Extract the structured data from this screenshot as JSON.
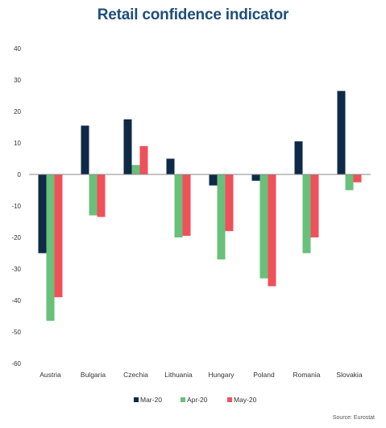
{
  "chart_data": {
    "type": "bar",
    "title": "Retail confidence indicator",
    "categories": [
      "Austria",
      "Bulgaria",
      "Czechia",
      "Lithuania",
      "Hungary",
      "Poland",
      "Romania",
      "Slovakia"
    ],
    "series": [
      {
        "name": "Mar-20",
        "color": "#0e2a47",
        "values": [
          -25,
          15.5,
          17.5,
          5,
          -3.5,
          -2,
          10.5,
          26.5
        ]
      },
      {
        "name": "Apr-20",
        "color": "#6abf7b",
        "values": [
          -46.5,
          -13,
          3,
          -20,
          -27,
          -33,
          -25,
          -5
        ]
      },
      {
        "name": "May-20",
        "color": "#f0505a",
        "values": [
          -39,
          -13.5,
          9,
          -19.5,
          -18,
          -35.5,
          -20,
          -2.5
        ]
      }
    ],
    "ylim": [
      -60,
      40
    ],
    "yticks": [
      -60,
      -50,
      -40,
      -30,
      -20,
      -10,
      0,
      10,
      20,
      30,
      40
    ],
    "legend_position": "bottom-center",
    "grid": false,
    "source": "Source: Eurostat"
  }
}
